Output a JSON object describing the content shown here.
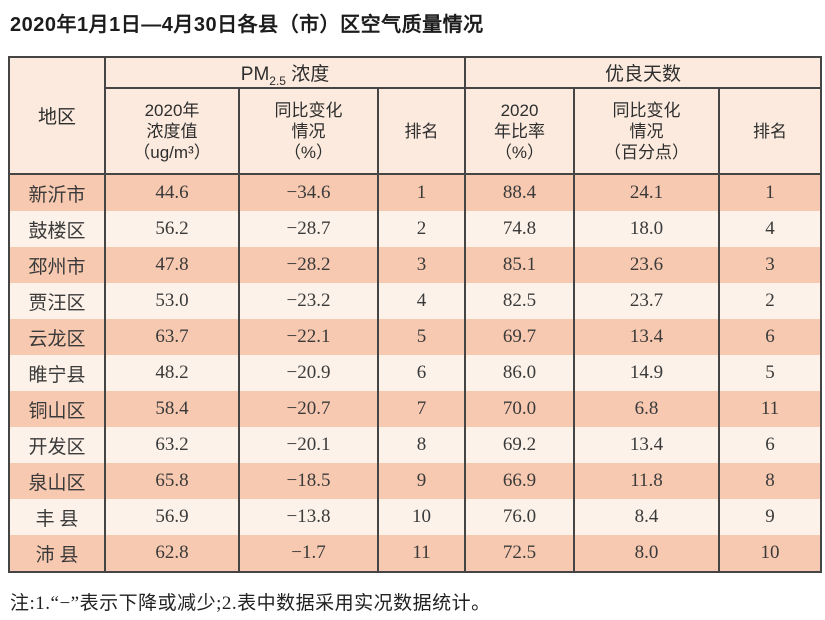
{
  "title": "2020年1月1日—4月30日各县（市）区空气质量情况",
  "table": {
    "region_header": "地区",
    "groups": {
      "pm25": {
        "pm": "PM",
        "sub": "2.5",
        "rest": " 浓度"
      },
      "good_days": "优良天数"
    },
    "subheaders": {
      "pm25_value": [
        "2020年",
        "浓度值",
        "（ug/m³）"
      ],
      "pm25_change": [
        "同比变化",
        "情况",
        "（%）"
      ],
      "pm25_rank": "排名",
      "good_ratio": [
        "2020",
        "年比率",
        "（%）"
      ],
      "good_change": [
        "同比变化",
        "情况",
        "（百分点）"
      ],
      "good_rank": "排名"
    },
    "columns_order": [
      "region",
      "pm25_value",
      "pm25_change",
      "pm25_rank",
      "good_ratio",
      "good_change",
      "good_rank"
    ],
    "rows": [
      {
        "region": "新沂市",
        "pm25_value": "44.6",
        "pm25_change": "−34.6",
        "pm25_rank": "1",
        "good_ratio": "88.4",
        "good_change": "24.1",
        "good_rank": "1"
      },
      {
        "region": "鼓楼区",
        "pm25_value": "56.2",
        "pm25_change": "−28.7",
        "pm25_rank": "2",
        "good_ratio": "74.8",
        "good_change": "18.0",
        "good_rank": "4"
      },
      {
        "region": "邳州市",
        "pm25_value": "47.8",
        "pm25_change": "−28.2",
        "pm25_rank": "3",
        "good_ratio": "85.1",
        "good_change": "23.6",
        "good_rank": "3"
      },
      {
        "region": "贾汪区",
        "pm25_value": "53.0",
        "pm25_change": "−23.2",
        "pm25_rank": "4",
        "good_ratio": "82.5",
        "good_change": "23.7",
        "good_rank": "2"
      },
      {
        "region": "云龙区",
        "pm25_value": "63.7",
        "pm25_change": "−22.1",
        "pm25_rank": "5",
        "good_ratio": "69.7",
        "good_change": "13.4",
        "good_rank": "6"
      },
      {
        "region": "睢宁县",
        "pm25_value": "48.2",
        "pm25_change": "−20.9",
        "pm25_rank": "6",
        "good_ratio": "86.0",
        "good_change": "14.9",
        "good_rank": "5"
      },
      {
        "region": "铜山区",
        "pm25_value": "58.4",
        "pm25_change": "−20.7",
        "pm25_rank": "7",
        "good_ratio": "70.0",
        "good_change": "6.8",
        "good_rank": "11"
      },
      {
        "region": "开发区",
        "pm25_value": "63.2",
        "pm25_change": "−20.1",
        "pm25_rank": "8",
        "good_ratio": "69.2",
        "good_change": "13.4",
        "good_rank": "6"
      },
      {
        "region": "泉山区",
        "pm25_value": "65.8",
        "pm25_change": "−18.5",
        "pm25_rank": "9",
        "good_ratio": "66.9",
        "good_change": "11.8",
        "good_rank": "8"
      },
      {
        "region": "丰 县",
        "pm25_value": "56.9",
        "pm25_change": "−13.8",
        "pm25_rank": "10",
        "good_ratio": "76.0",
        "good_change": "8.4",
        "good_rank": "9"
      },
      {
        "region": "沛 县",
        "pm25_value": "62.8",
        "pm25_change": "−1.7",
        "pm25_rank": "11",
        "good_ratio": "72.5",
        "good_change": "8.0",
        "good_rank": "10"
      }
    ]
  },
  "footnote": "注:1.“−”表示下降或减少;2.表中数据采用实况数据统计。",
  "colors": {
    "row_salmon": "#f8c9b1",
    "row_cream": "#fcf2e9",
    "header_bg": "#fbeadd",
    "border": "#454545",
    "text": "#2e2e2e"
  }
}
